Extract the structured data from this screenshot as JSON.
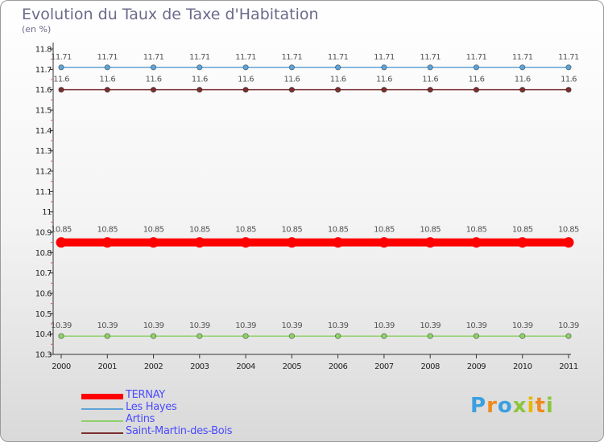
{
  "title": "Evolution du Taux de Taxe d'Habitation",
  "unit": "(en %)",
  "chart_data": {
    "type": "line",
    "title": "Evolution du Taux de Taxe d'Habitation",
    "ylabel": "(en %)",
    "xlabel": "",
    "x": [
      "2000",
      "2001",
      "2002",
      "2003",
      "2004",
      "2005",
      "2006",
      "2007",
      "2008",
      "2009",
      "2010",
      "2011"
    ],
    "ylim": [
      10.3,
      11.8
    ],
    "yticks": [
      "10.3",
      "10.4",
      "10.5",
      "10.6",
      "10.7",
      "10.8",
      "10.9",
      "11",
      "11.1",
      "11.2",
      "11.3",
      "11.4",
      "11.5",
      "11.6",
      "11.7",
      "11.8"
    ],
    "series": [
      {
        "name": "TERNAY",
        "color": "#ff0000",
        "values": [
          10.85,
          10.85,
          10.85,
          10.85,
          10.85,
          10.85,
          10.85,
          10.85,
          10.85,
          10.85,
          10.85,
          10.85
        ],
        "labels": [
          "10.85",
          "10.85",
          "10.85",
          "10.85",
          "10.85",
          "10.85",
          "10.85",
          "10.85",
          "10.85",
          "10.85",
          "10.85",
          "10.85"
        ]
      },
      {
        "name": "Les Hayes",
        "color": "#5fa3d6",
        "values": [
          11.71,
          11.71,
          11.71,
          11.71,
          11.71,
          11.71,
          11.71,
          11.71,
          11.71,
          11.71,
          11.71,
          11.71
        ],
        "labels": [
          "11.71",
          "11.71",
          "11.71",
          "11.71",
          "11.71",
          "11.71",
          "11.71",
          "11.71",
          "11.71",
          "11.71",
          "11.71",
          "11.71"
        ]
      },
      {
        "name": "Artins",
        "color": "#8fd16a",
        "values": [
          10.39,
          10.39,
          10.39,
          10.39,
          10.39,
          10.39,
          10.39,
          10.39,
          10.39,
          10.39,
          10.39,
          10.39
        ],
        "labels": [
          "10.39",
          "10.39",
          "10.39",
          "10.39",
          "10.39",
          "10.39",
          "10.39",
          "10.39",
          "10.39",
          "10.39",
          "10.39",
          "10.39"
        ]
      },
      {
        "name": "Saint-Martin-des-Bois",
        "color": "#7a2e2e",
        "values": [
          11.6,
          11.6,
          11.6,
          11.6,
          11.6,
          11.6,
          11.6,
          11.6,
          11.6,
          11.6,
          11.6,
          11.6
        ],
        "labels": [
          "11.6",
          "11.6",
          "11.6",
          "11.6",
          "11.6",
          "11.6",
          "11.6",
          "11.6",
          "11.6",
          "11.6",
          "11.6",
          "11.6"
        ]
      }
    ],
    "legend": "bottom-left",
    "grid": false
  },
  "legend_items": [
    "TERNAY",
    "Les Hayes",
    "Artins",
    "Saint-Martin-des-Bois"
  ],
  "logo": {
    "text": "Proxiti",
    "letters": [
      "P",
      "r",
      "o",
      "x",
      "i",
      "t",
      "i"
    ],
    "colors": [
      "#3aa0e0",
      "#f08a1e",
      "#3aa0e0",
      "#8cc63f",
      "#e6b800",
      "#f08a1e",
      "#8cc63f"
    ]
  }
}
